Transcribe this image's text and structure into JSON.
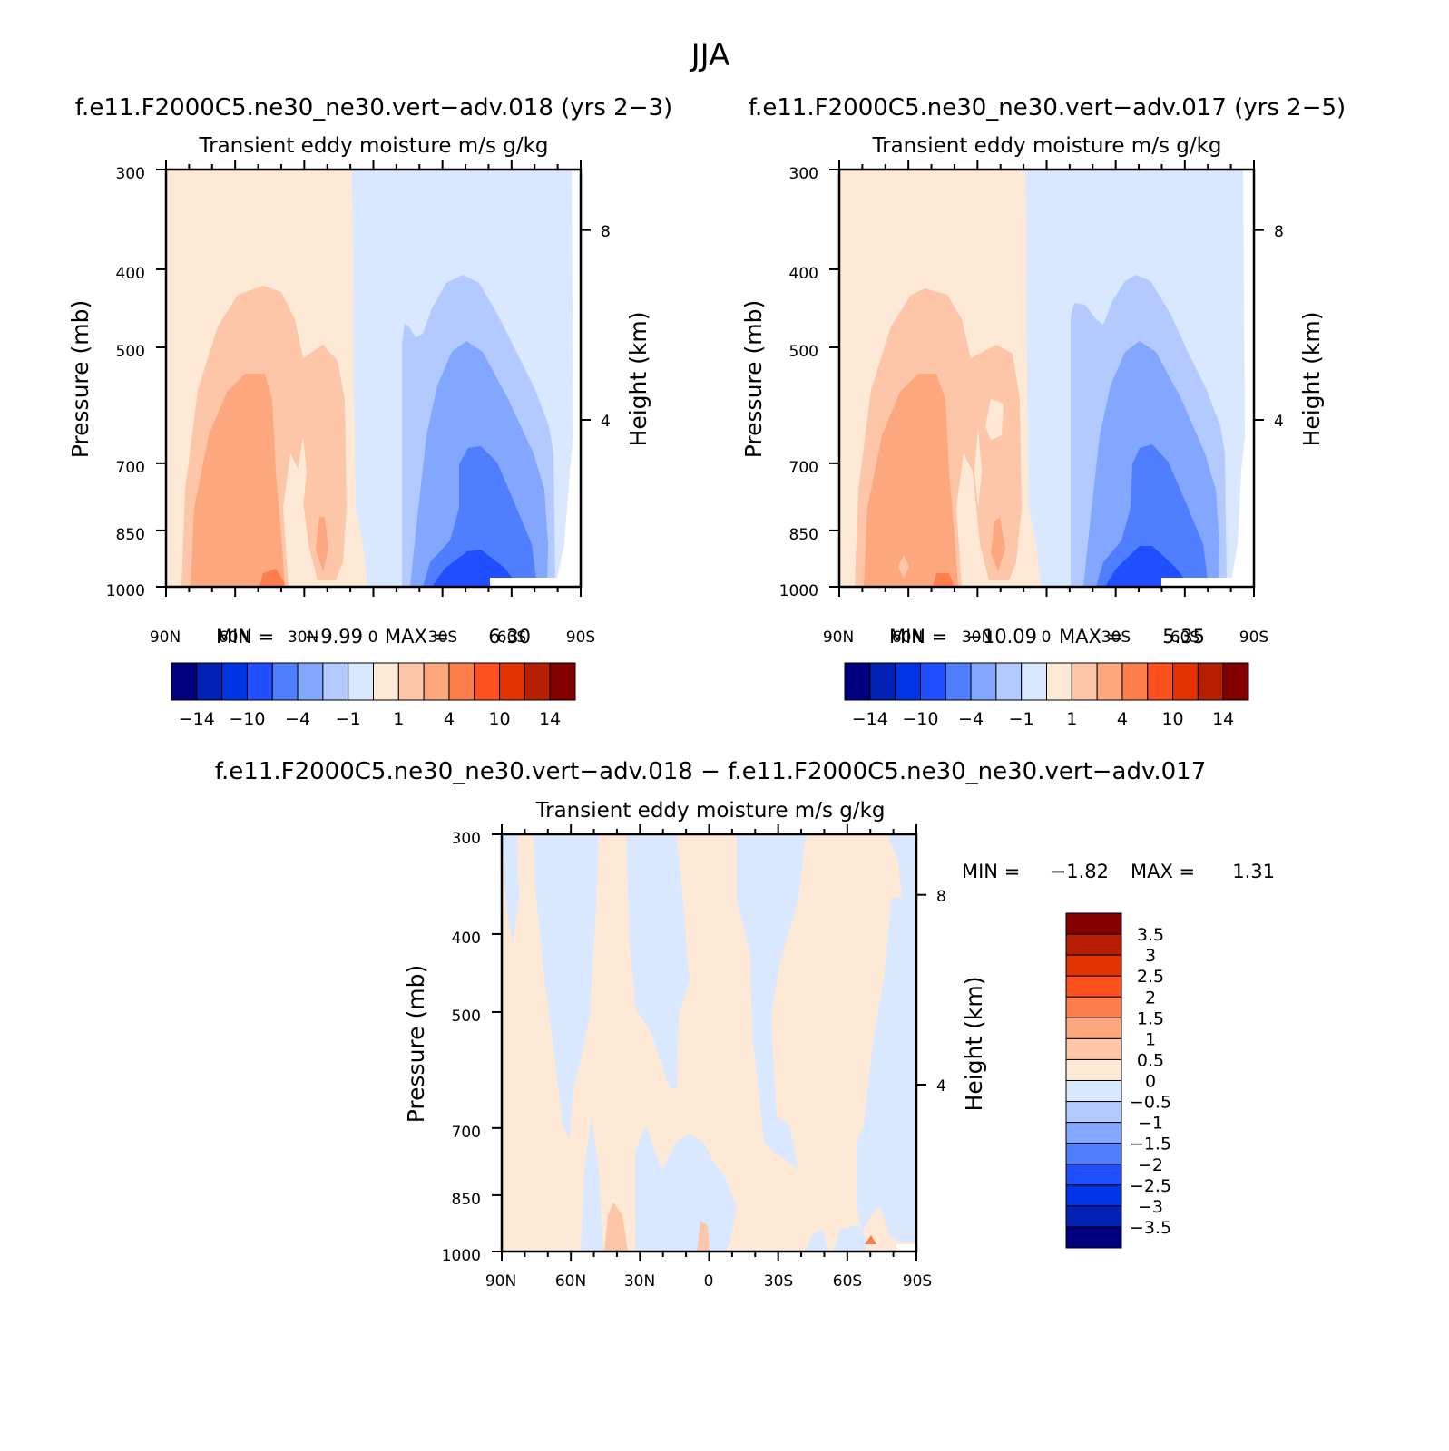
{
  "figure": {
    "title": "JJA"
  },
  "chart_data": [
    {
      "type": "contour",
      "case_title": "f.e11.F2000C5.ne30_ne30.vert−adv.018 (yrs 2−3)",
      "subtitle": "Transient  eddy  moisture m/s  g/kg",
      "ylabel": "Pressure  (mb)",
      "ylabel_right": "Height  (km)",
      "x_ticks": [
        "90N",
        "60N",
        "30N",
        "0",
        "30S",
        "60S",
        "90S"
      ],
      "y_ticks": [
        "300",
        "400",
        "500",
        "700",
        "850",
        "1000"
      ],
      "y_ticks_right": [
        "8",
        "4"
      ],
      "min_label": "MIN =",
      "min_value": "−9.99",
      "max_label": "MAX =",
      "max_value": "6.30",
      "colorbar_labels": [
        "−14",
        "−10",
        "−4",
        "−1",
        "1",
        "4",
        "10",
        "14"
      ]
    },
    {
      "type": "contour",
      "case_title": "f.e11.F2000C5.ne30_ne30.vert−adv.017 (yrs 2−5)",
      "subtitle": "Transient  eddy  moisture m/s  g/kg",
      "ylabel": "Pressure  (mb)",
      "ylabel_right": "Height  (km)",
      "x_ticks": [
        "90N",
        "60N",
        "30N",
        "0",
        "30S",
        "60S",
        "90S"
      ],
      "y_ticks": [
        "300",
        "400",
        "500",
        "700",
        "850",
        "1000"
      ],
      "y_ticks_right": [
        "8",
        "4"
      ],
      "min_label": "MIN =",
      "min_value": "−10.09",
      "max_label": "MAX =",
      "max_value": "5.35",
      "colorbar_labels": [
        "−14",
        "−10",
        "−4",
        "−1",
        "1",
        "4",
        "10",
        "14"
      ]
    },
    {
      "type": "contour",
      "case_title": "f.e11.F2000C5.ne30_ne30.vert−adv.018 − f.e11.F2000C5.ne30_ne30.vert−adv.017",
      "subtitle": "Transient  eddy  moisture m/s  g/kg",
      "ylabel": "Pressure  (mb)",
      "ylabel_right": "Height  (km)",
      "x_ticks": [
        "90N",
        "60N",
        "30N",
        "0",
        "30S",
        "60S",
        "90S"
      ],
      "y_ticks": [
        "300",
        "400",
        "500",
        "700",
        "850",
        "1000"
      ],
      "y_ticks_right": [
        "8",
        "4"
      ],
      "min_label": "MIN =",
      "min_value": "−1.82",
      "max_label": "MAX =",
      "max_value": "1.31",
      "colorbar_labels": [
        "3.5",
        "3",
        "2.5",
        "2",
        "1.5",
        "1",
        "0.5",
        "0",
        "−0.5",
        "−1",
        "−1.5",
        "−2",
        "−2.5",
        "−3",
        "−3.5"
      ]
    }
  ],
  "palette": [
    "#00007f",
    "#0021b2",
    "#0035e5",
    "#1f4fff",
    "#4f7fff",
    "#83a6ff",
    "#b2caff",
    "#d9e8ff",
    "#fde9d5",
    "#fdc6a9",
    "#fda77e",
    "#fd7d4c",
    "#fd511e",
    "#e23300",
    "#b51f00",
    "#840000"
  ]
}
